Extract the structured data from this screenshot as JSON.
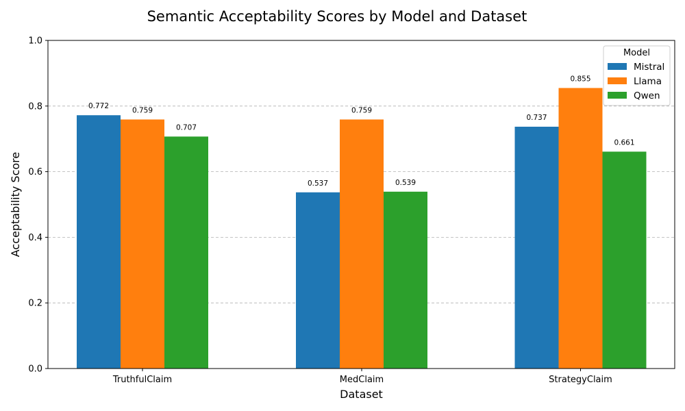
{
  "chart_data": {
    "type": "bar",
    "title": "Semantic Acceptability Scores by Model and Dataset",
    "xlabel": "Dataset",
    "ylabel": "Acceptability Score",
    "ylim": [
      0,
      1
    ],
    "yticks": [
      "0.0",
      "0.2",
      "0.4",
      "0.6",
      "0.8",
      "1.0"
    ],
    "ytick_values": [
      0,
      0.2,
      0.4,
      0.6,
      0.8,
      1.0
    ],
    "grid": "y, dashed",
    "legend": {
      "title": "Model",
      "placement": "top-right"
    },
    "categories": [
      "TruthfulClaim",
      "MedClaim",
      "StrategyClaim"
    ],
    "series": [
      {
        "name": "Mistral",
        "color": "#1f77b4",
        "values": [
          0.772,
          0.537,
          0.737
        ],
        "labels": [
          "0.772",
          "0.537",
          "0.737"
        ]
      },
      {
        "name": "Llama",
        "color": "#ff7f0e",
        "values": [
          0.759,
          0.759,
          0.855
        ],
        "labels": [
          "0.759",
          "0.759",
          "0.855"
        ]
      },
      {
        "name": "Qwen",
        "color": "#2ca02c",
        "values": [
          0.707,
          0.539,
          0.661
        ],
        "labels": [
          "0.707",
          "0.539",
          "0.661"
        ]
      }
    ]
  }
}
